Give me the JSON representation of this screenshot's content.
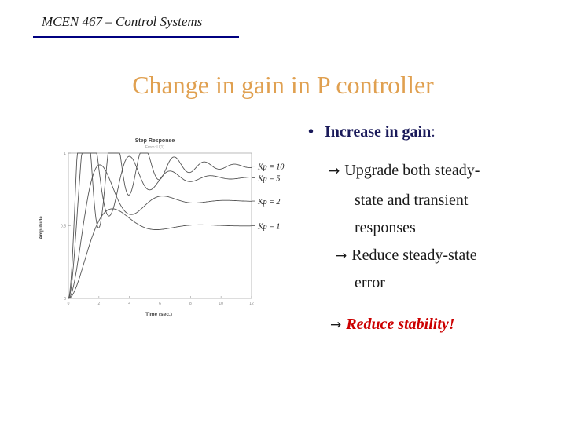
{
  "header": {
    "course": "MCEN 467 – Control Systems"
  },
  "slide": {
    "title": "Change in gain in P controller"
  },
  "bullets": {
    "heading": "Increase in gain",
    "heading_colon": ":",
    "items": [
      {
        "line1": "Upgrade both steady-",
        "line2": "state and transient",
        "line3": "responses"
      },
      {
        "line1": "Reduce steady-state",
        "line2": "error"
      },
      {
        "line1": "Reduce stability!",
        "color": "#cc0000"
      }
    ],
    "arrow_icon": "→"
  },
  "chart_data": {
    "type": "line",
    "title": "Step Response",
    "subtitle": "From: U(1)",
    "xlabel": "Time (sec.)",
    "ylabel": "Amplitude",
    "xlim": [
      0,
      12
    ],
    "ylim": [
      0,
      1.0
    ],
    "xticks": [
      "0",
      "2",
      "4",
      "6",
      "8",
      "10",
      "12"
    ],
    "yticks": [
      "0",
      "0.5",
      "1"
    ],
    "series": [
      {
        "name": "Kp = 10",
        "final": 0.91
      },
      {
        "name": "Kp = 5",
        "final": 0.83
      },
      {
        "name": "Kp = 2",
        "final": 0.67
      },
      {
        "name": "Kp = 1",
        "final": 0.5
      }
    ]
  }
}
